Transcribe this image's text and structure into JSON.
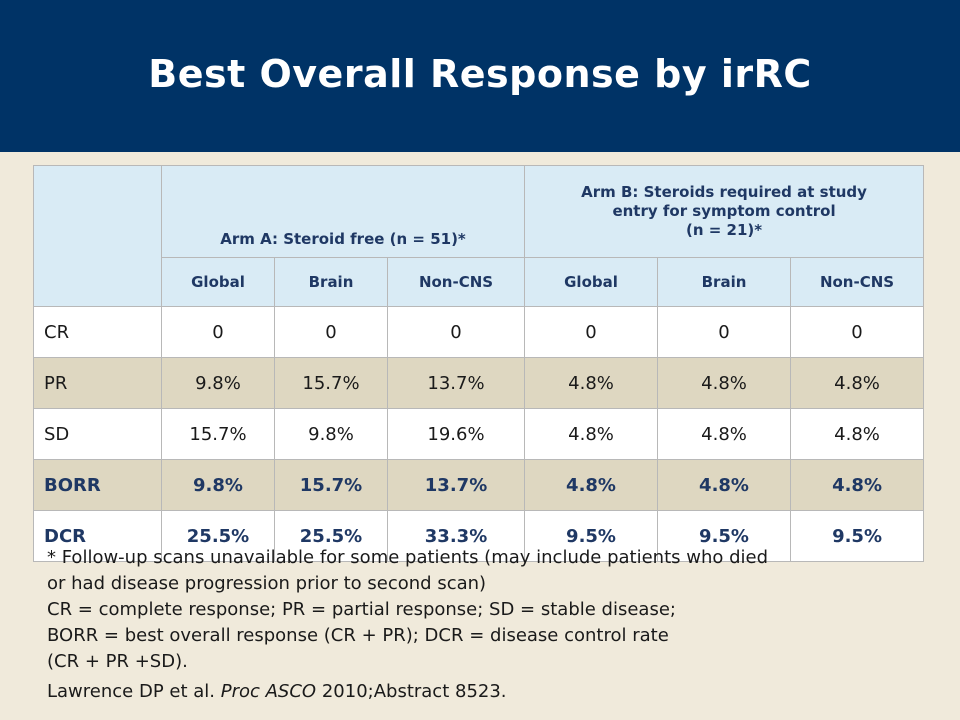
{
  "title": "Best Overall Response by irRC",
  "table": {
    "arm_a_header": "Arm A: Steroid free (n = 51)*",
    "arm_b_header_line1": "Arm B: Steroids required at study",
    "arm_b_header_line2": "entry for symptom control",
    "arm_b_header_line3": "(n = 21)*",
    "subheaders": [
      "Global",
      "Brain",
      "Non-CNS",
      "Global",
      "Brain",
      "Non-CNS"
    ],
    "rows": [
      {
        "label": "CR",
        "values": [
          "0",
          "0",
          "0",
          "0",
          "0",
          "0"
        ]
      },
      {
        "label": "PR",
        "values": [
          "9.8%",
          "15.7%",
          "13.7%",
          "4.8%",
          "4.8%",
          "4.8%"
        ]
      },
      {
        "label": "SD",
        "values": [
          "15.7%",
          "9.8%",
          "19.6%",
          "4.8%",
          "4.8%",
          "4.8%"
        ]
      },
      {
        "label": "BORR",
        "values": [
          "9.8%",
          "15.7%",
          "13.7%",
          "4.8%",
          "4.8%",
          "4.8%"
        ]
      },
      {
        "label": "DCR",
        "values": [
          "25.5%",
          "25.5%",
          "33.3%",
          "9.5%",
          "9.5%",
          "9.5%"
        ]
      }
    ]
  },
  "footnote": {
    "line1": "* Follow-up scans unavailable for some patients (may include patients who died",
    "line2": "or had disease progression prior to second scan)",
    "line3": "CR = complete response; PR = partial response; SD = stable disease;",
    "line4": "BORR = best overall response (CR + PR); DCR = disease control rate",
    "line5": "(CR + PR +SD)."
  },
  "citation": {
    "authors": "Lawrence DP et al. ",
    "journal": "Proc ASCO",
    "rest": " 2010;Abstract 8523."
  },
  "colors": {
    "header_bg": "#003366",
    "page_bg": "#f0eadb",
    "table_header_bg": "#d9ebf5",
    "alt_row_bg": "#ded7c1",
    "header_text": "#1f3864"
  }
}
